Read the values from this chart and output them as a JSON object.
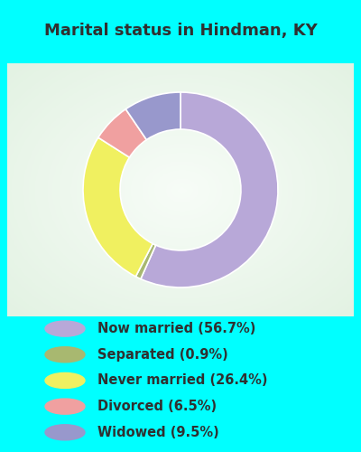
{
  "title": "Marital status in Hindman, KY",
  "slices": [
    {
      "label": "Now married (56.7%)",
      "value": 56.7,
      "color": "#b8a8d8"
    },
    {
      "label": "Separated (0.9%)",
      "value": 0.9,
      "color": "#a8b870"
    },
    {
      "label": "Never married (26.4%)",
      "value": 26.4,
      "color": "#f0f060"
    },
    {
      "label": "Divorced (6.5%)",
      "value": 6.5,
      "color": "#f0a0a0"
    },
    {
      "label": "Widowed (9.5%)",
      "value": 9.5,
      "color": "#9898cc"
    }
  ],
  "legend_labels": [
    "Now married (56.7%)",
    "Separated (0.9%)",
    "Never married (26.4%)",
    "Divorced (6.5%)",
    "Widowed (9.5%)"
  ],
  "legend_colors": [
    "#b8a8d8",
    "#a8b870",
    "#f0f060",
    "#f0a0a0",
    "#9898cc"
  ],
  "background_color": "#00ffff",
  "chart_bg_color1": "#f0f8f0",
  "chart_bg_color2": "#d8ecd8",
  "title_color": "#303030",
  "title_fontsize": 13,
  "legend_fontsize": 10.5,
  "figsize": [
    4.0,
    5.0
  ],
  "dpi": 100,
  "donut_width": 0.38,
  "start_angle": 90
}
